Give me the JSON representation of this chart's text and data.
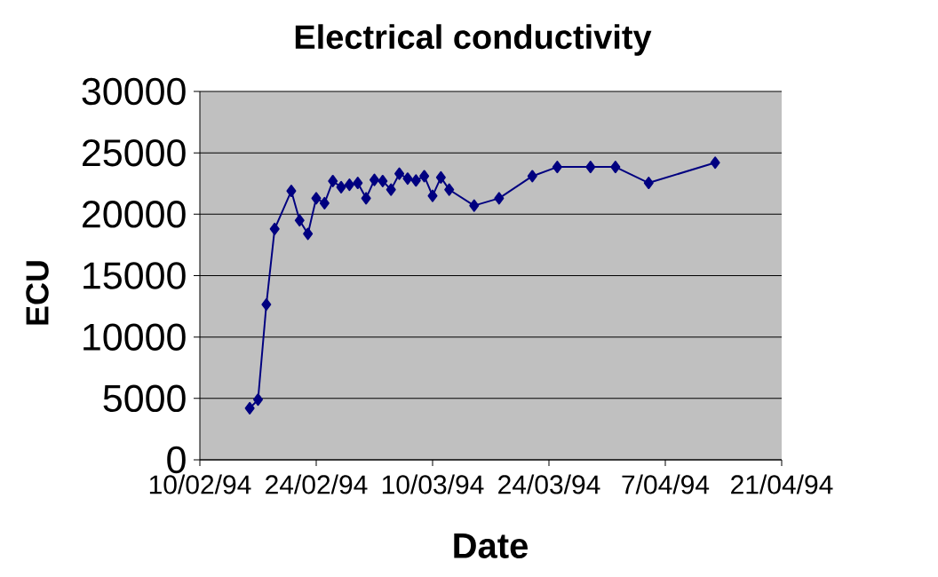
{
  "chart_data": {
    "type": "line",
    "title": "Electrical conductivity",
    "xlabel": "Date",
    "ylabel": "ECU",
    "x": [
      "1994-02-16",
      "1994-02-17",
      "1994-02-18",
      "1994-02-19",
      "1994-02-21",
      "1994-02-22",
      "1994-02-23",
      "1994-02-24",
      "1994-02-25",
      "1994-02-26",
      "1994-02-27",
      "1994-02-28",
      "1994-03-01",
      "1994-03-02",
      "1994-03-03",
      "1994-03-04",
      "1994-03-05",
      "1994-03-06",
      "1994-03-07",
      "1994-03-08",
      "1994-03-09",
      "1994-03-10",
      "1994-03-11",
      "1994-03-12",
      "1994-03-15",
      "1994-03-18",
      "1994-03-22",
      "1994-03-25",
      "1994-03-29",
      "1994-04-01",
      "1994-04-05",
      "1994-04-13"
    ],
    "series": [
      {
        "color": "#000080",
        "values": [
          4200,
          4900,
          12650,
          18800,
          21900,
          19500,
          18400,
          21300,
          20900,
          22700,
          22200,
          22400,
          22550,
          21300,
          22800,
          22700,
          22000,
          23300,
          22900,
          22750,
          23100,
          21500,
          23000,
          22000,
          20700,
          21300,
          23100,
          23850,
          23850,
          23850,
          22550,
          24200
        ]
      }
    ],
    "xlim": [
      "1994-02-10",
      "1994-04-21"
    ],
    "xticks": [
      {
        "value": "1994-02-10",
        "label": "10/02/94"
      },
      {
        "value": "1994-02-24",
        "label": "24/02/94"
      },
      {
        "value": "1994-03-10",
        "label": "10/03/94"
      },
      {
        "value": "1994-03-24",
        "label": "24/03/94"
      },
      {
        "value": "1994-04-07",
        "label": "7/04/94"
      },
      {
        "value": "1994-04-21",
        "label": "21/04/94"
      }
    ],
    "ylim": [
      0,
      30000
    ],
    "yticks": [
      0,
      5000,
      10000,
      15000,
      20000,
      25000,
      30000
    ],
    "grid": "y",
    "marker": "diamond",
    "line_style": "solid"
  }
}
